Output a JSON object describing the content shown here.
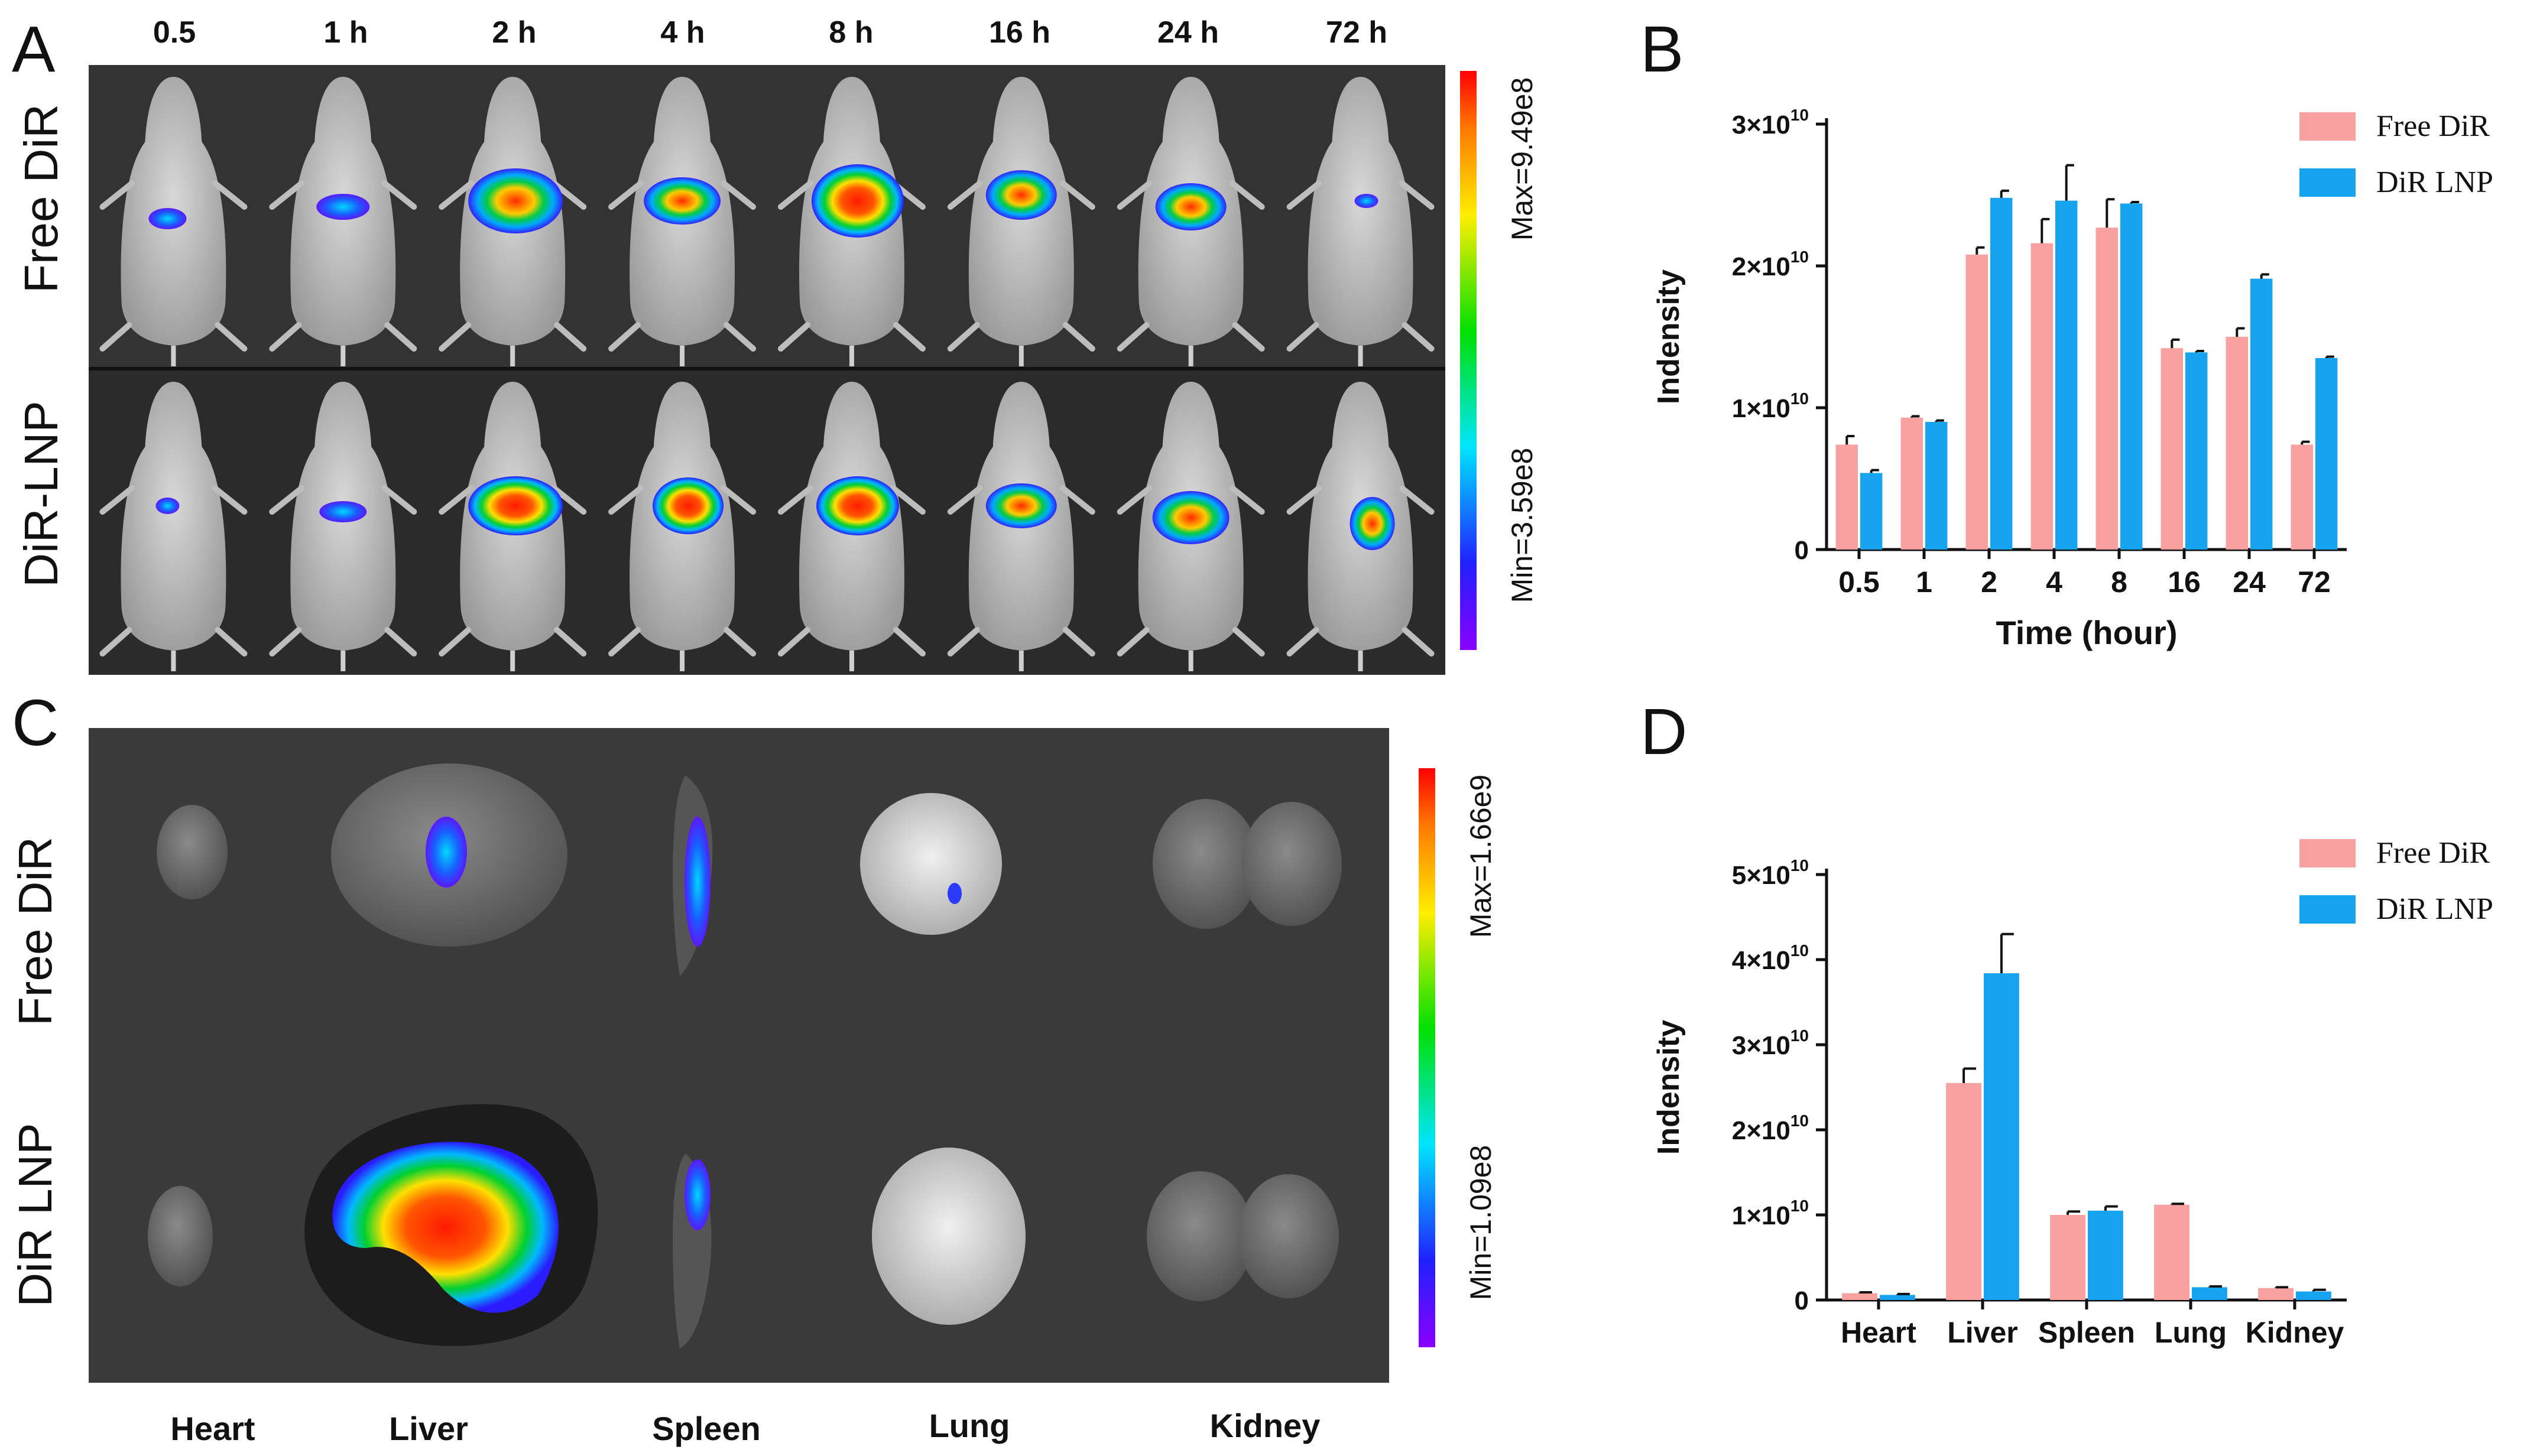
{
  "panelA": {
    "letter": "A",
    "timepoints": [
      "0.5",
      "1 h",
      "2 h",
      "4 h",
      "8 h",
      "16 h",
      "24 h",
      "72 h"
    ],
    "rows": [
      "Free DiR",
      "DiR-LNP"
    ],
    "colorbar": {
      "max_label": "Max=9.49e8",
      "min_label": "Min=3.59e8"
    }
  },
  "panelC": {
    "letter": "C",
    "rows": [
      "Free DiR",
      "DiR LNP"
    ],
    "organs": [
      "Heart",
      "Liver",
      "Spleen",
      "Lung",
      "Kidney"
    ],
    "colorbar": {
      "max_label": "Max=1.66e9",
      "min_label": "Min=1.09e8"
    }
  },
  "colors": {
    "free_dir": "#f9a0a0",
    "dir_lnp": "#16a3f0",
    "axis": "#111111"
  },
  "chart_data": [
    {
      "panel": "B",
      "type": "bar",
      "xlabel": "Time (hour)",
      "ylabel": "Indensity",
      "categories": [
        "0.5",
        "1",
        "2",
        "4",
        "8",
        "16",
        "24",
        "72"
      ],
      "ylim": [
        0,
        30000000000.0
      ],
      "yticks": [
        {
          "value": 0,
          "base": "0",
          "exp": ""
        },
        {
          "value": 10000000000.0,
          "base": "1×10",
          "exp": "10"
        },
        {
          "value": 20000000000.0,
          "base": "2×10",
          "exp": "10"
        },
        {
          "value": 30000000000.0,
          "base": "3×10",
          "exp": "10"
        }
      ],
      "legend_position": "top-right",
      "series": [
        {
          "name": "Free DiR",
          "color": "#f9a0a0",
          "values": [
            7400000000.0,
            9300000000.0,
            20800000000.0,
            21600000000.0,
            22700000000.0,
            14200000000.0,
            15000000000.0,
            7400000000.0
          ],
          "errors": [
            600000000.0,
            100000000.0,
            500000000.0,
            1700000000.0,
            2000000000.0,
            600000000.0,
            600000000.0,
            200000000.0
          ]
        },
        {
          "name": "DiR LNP",
          "color": "#16a3f0",
          "values": [
            5400000000.0,
            9000000000.0,
            24800000000.0,
            24600000000.0,
            24400000000.0,
            13900000000.0,
            19100000000.0,
            13500000000.0
          ],
          "errors": [
            200000000.0,
            100000000.0,
            500000000.0,
            2500000000.0,
            100000000.0,
            100000000.0,
            300000000.0,
            100000000.0
          ]
        }
      ]
    },
    {
      "panel": "D",
      "type": "bar",
      "xlabel": "",
      "ylabel": "Indensity",
      "categories": [
        "Heart",
        "Liver",
        "Spleen",
        "Lung",
        "Kidney"
      ],
      "ylim": [
        0,
        50000000000.0
      ],
      "yticks": [
        {
          "value": 0,
          "base": "0",
          "exp": ""
        },
        {
          "value": 10000000000.0,
          "base": "1×10",
          "exp": "10"
        },
        {
          "value": 20000000000.0,
          "base": "2×10",
          "exp": "10"
        },
        {
          "value": 30000000000.0,
          "base": "3×10",
          "exp": "10"
        },
        {
          "value": 40000000000.0,
          "base": "4×10",
          "exp": "10"
        },
        {
          "value": 50000000000.0,
          "base": "5×10",
          "exp": "10"
        }
      ],
      "legend_position": "top-right",
      "series": [
        {
          "name": "Free DiR",
          "color": "#f9a0a0",
          "values": [
            800000000.0,
            25500000000.0,
            10000000000.0,
            11200000000.0,
            1400000000.0
          ],
          "errors": [
            100000000.0,
            1700000000.0,
            400000000.0,
            100000000.0,
            100000000.0
          ]
        },
        {
          "name": "DiR LNP",
          "color": "#16a3f0",
          "values": [
            600000000.0,
            38400000000.0,
            10500000000.0,
            1500000000.0,
            1000000000.0
          ],
          "errors": [
            100000000.0,
            4600000000.0,
            500000000.0,
            100000000.0,
            200000000.0
          ]
        }
      ]
    }
  ]
}
